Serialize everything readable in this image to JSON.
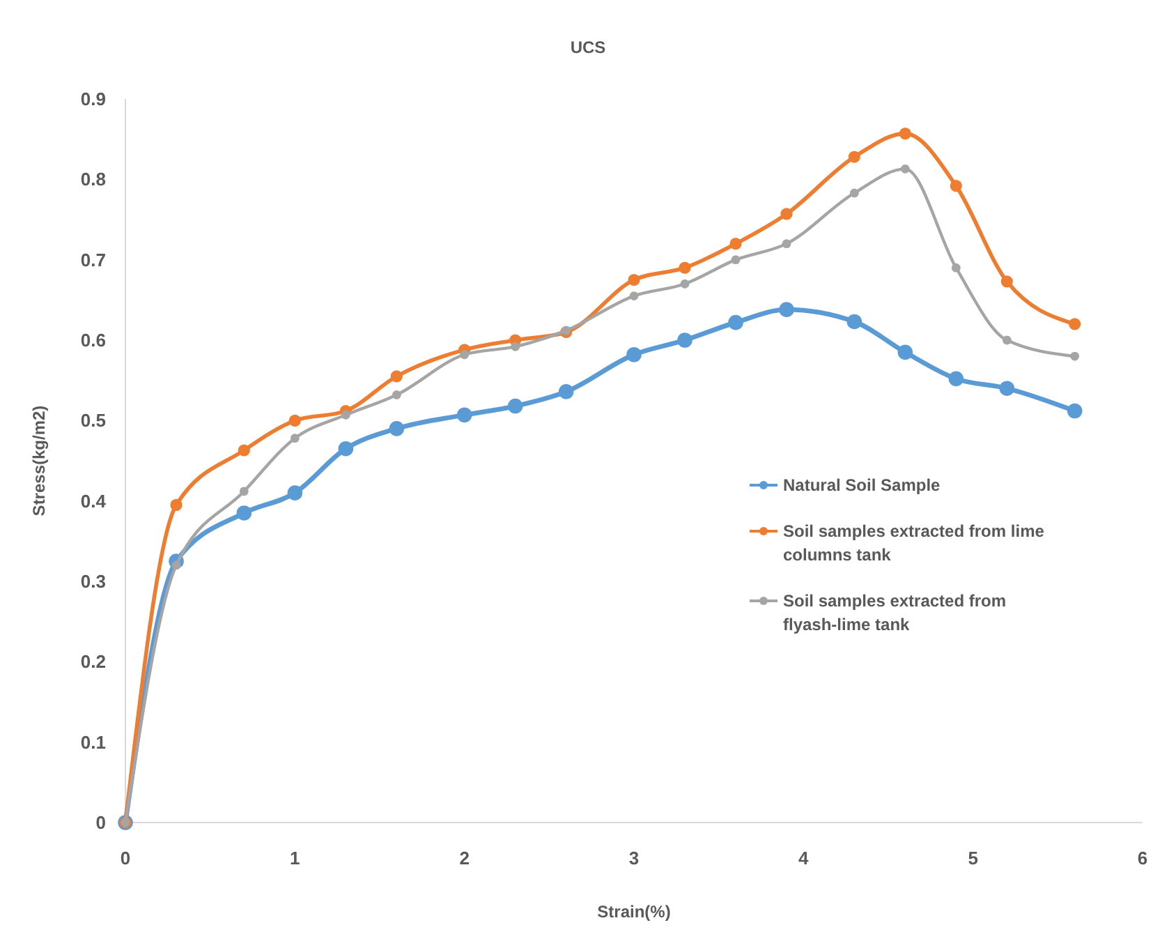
{
  "chart_data": {
    "type": "line",
    "title": "UCS",
    "xlabel": "Strain(%)",
    "ylabel": "Stress(kg/m2)",
    "x": [
      0,
      0.3,
      0.7,
      1.0,
      1.3,
      1.6,
      2.0,
      2.3,
      2.6,
      3.0,
      3.3,
      3.6,
      3.9,
      4.3,
      4.6,
      4.9,
      5.2,
      5.6
    ],
    "series": [
      {
        "name": "Natural Soil Sample",
        "color": "#5b9bd5",
        "values": [
          0,
          0.325,
          0.385,
          0.41,
          0.465,
          0.49,
          0.507,
          0.518,
          0.536,
          0.582,
          0.6,
          0.622,
          0.638,
          0.623,
          0.585,
          0.552,
          0.54,
          0.512
        ]
      },
      {
        "name": "Soil samples extracted from lime columns tank",
        "color": "#ed7d31",
        "values": [
          0,
          0.395,
          0.463,
          0.5,
          0.512,
          0.555,
          0.588,
          0.6,
          0.61,
          0.675,
          0.69,
          0.72,
          0.757,
          0.828,
          0.857,
          0.792,
          0.673,
          0.62
        ]
      },
      {
        "name": "Soil samples extracted from flyash-lime tank",
        "color": "#a5a5a5",
        "values": [
          0,
          0.32,
          0.412,
          0.478,
          0.507,
          0.532,
          0.582,
          0.592,
          0.612,
          0.655,
          0.67,
          0.7,
          0.72,
          0.783,
          0.813,
          0.69,
          0.6,
          0.58
        ]
      }
    ],
    "xlim": [
      0,
      6
    ],
    "xticks": [
      0,
      1,
      2,
      3,
      4,
      5,
      6
    ],
    "ylim": [
      0,
      0.9
    ],
    "yticks": [
      0,
      0.1,
      0.2,
      0.3,
      0.4,
      0.5,
      0.6,
      0.7,
      0.8,
      0.9
    ],
    "grid": false,
    "legend": "right",
    "marker": "circle",
    "line_style": "solid"
  }
}
